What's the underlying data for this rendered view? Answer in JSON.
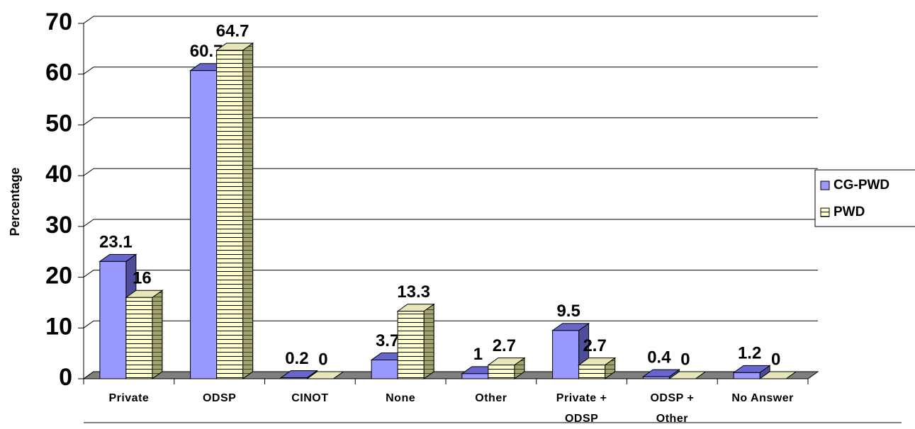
{
  "chart_data": {
    "type": "bar",
    "y_label": "Percentage",
    "categories": [
      "Private",
      "ODSP",
      "CINOT",
      "None",
      "Other",
      "Private + ODSP",
      "ODSP + Other",
      "No Answer"
    ],
    "series": [
      {
        "name": "CG-PWD",
        "color": "#9999ff",
        "values": [
          23.1,
          60.7,
          0.2,
          3.7,
          1,
          9.5,
          0.4,
          1.2
        ]
      },
      {
        "name": "PWD",
        "color": "#ffffcc",
        "values": [
          16,
          64.7,
          0,
          13.3,
          2.7,
          2.7,
          0,
          0
        ]
      }
    ],
    "ylim": [
      0,
      70
    ],
    "yticks": [
      0,
      10,
      20,
      30,
      40,
      50,
      60,
      70
    ],
    "grid": true,
    "legend": "right"
  }
}
